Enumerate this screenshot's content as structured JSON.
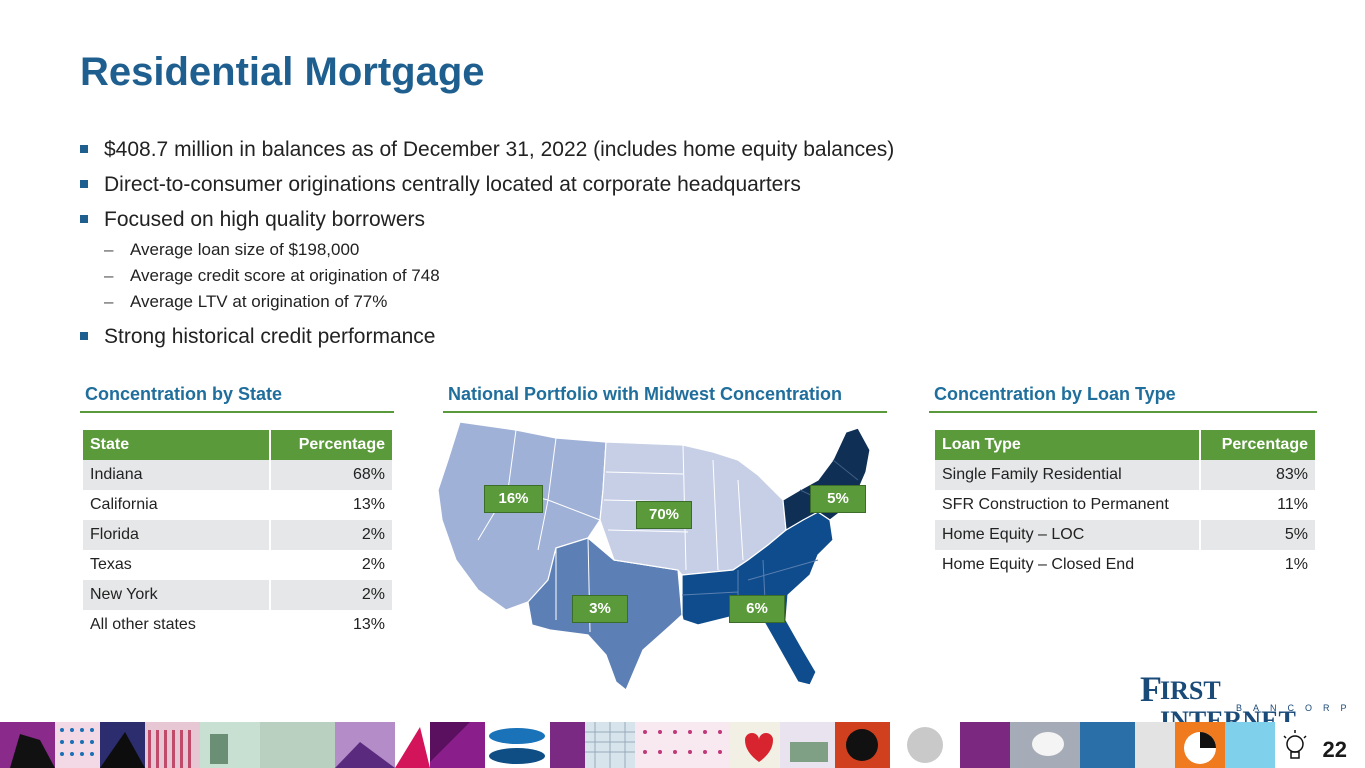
{
  "title": "Residential Mortgage",
  "bullets": [
    "$408.7 million in balances as of December 31, 2022 (includes home equity balances)",
    "Direct-to-consumer originations centrally located at corporate headquarters",
    "Focused on high quality borrowers",
    "Strong historical credit performance"
  ],
  "sub_bullets": [
    "Average loan size of $198,000",
    "Average credit score at origination of 748",
    "Average LTV at origination of 77%"
  ],
  "state_section": {
    "heading": "Concentration by State",
    "col_state": "State",
    "col_pct": "Percentage",
    "rows": [
      {
        "state": "Indiana",
        "pct": "68%"
      },
      {
        "state": "California",
        "pct": "13%"
      },
      {
        "state": "Florida",
        "pct": "2%"
      },
      {
        "state": "Texas",
        "pct": "2%"
      },
      {
        "state": "New York",
        "pct": "2%"
      },
      {
        "state": "All other states",
        "pct": "13%"
      }
    ]
  },
  "map_section": {
    "heading": "National Portfolio with Midwest Concentration",
    "labels": {
      "west": "16%",
      "midwest": "70%",
      "northeast": "5%",
      "southwest": "3%",
      "southeast": "6%"
    }
  },
  "loan_section": {
    "heading": "Concentration by Loan Type",
    "col_type": "Loan Type",
    "col_pct": "Percentage",
    "rows": [
      {
        "type": "Single Family Residential",
        "pct": "83%"
      },
      {
        "type": "SFR Construction to Permanent",
        "pct": "11%"
      },
      {
        "type": "Home Equity – LOC",
        "pct": "5%"
      },
      {
        "type": "Home Equity – Closed End",
        "pct": "1%"
      }
    ]
  },
  "logo": {
    "first_letter": "F",
    "name": "IRST INTERNET",
    "sub": "BANCORP"
  },
  "page_number": "22",
  "colors": {
    "title": "#1f5f8f",
    "accent_green": "#5b9a3b",
    "section_heading": "#1f6e9c",
    "row_alt": "#e6e7e8"
  }
}
